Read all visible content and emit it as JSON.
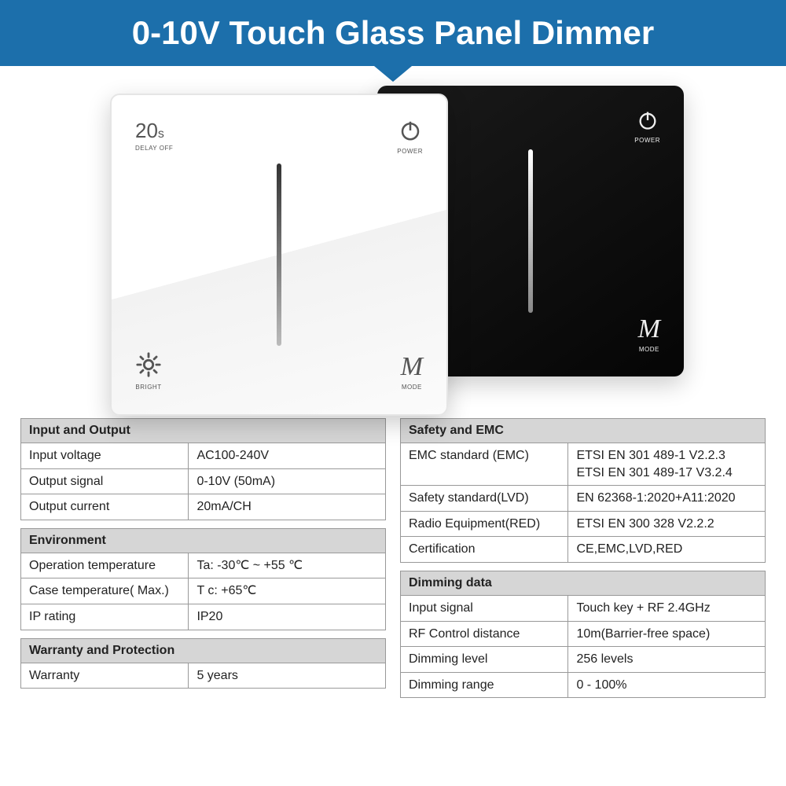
{
  "banner": {
    "title": "0-10V Touch Glass Panel Dimmer",
    "bg": "#1c6fab"
  },
  "panel_labels": {
    "delay_value": "20",
    "delay_unit": "s",
    "delay_off": "DELAY OFF",
    "power": "POWER",
    "bright": "BRIGHT",
    "mode_letter": "M",
    "mode": "MODE"
  },
  "left_tables": [
    {
      "title": "Input and Output",
      "rows": [
        [
          "Input voltage",
          "AC100-240V"
        ],
        [
          "Output signal",
          "0-10V (50mA)"
        ],
        [
          "Output current",
          "20mA/CH"
        ]
      ]
    },
    {
      "title": "Environment",
      "rows": [
        [
          "Operation temperature",
          "Ta: -30℃ ~ +55 ℃"
        ],
        [
          "Case temperature( Max.)",
          "T c: +65℃"
        ],
        [
          "IP rating",
          "IP20"
        ]
      ]
    },
    {
      "title": "Warranty and Protection",
      "rows": [
        [
          "Warranty",
          "5 years"
        ]
      ]
    }
  ],
  "right_tables": [
    {
      "title": "Safety and EMC",
      "rows": [
        [
          "EMC standard (EMC)",
          "ETSI EN 301 489-1 V2.2.3\nETSI EN 301 489-17 V3.2.4"
        ],
        [
          "Safety standard(LVD)",
          "EN 62368-1:2020+A11:2020"
        ],
        [
          "Radio Equipment(RED)",
          "ETSI EN 300 328 V2.2.2"
        ],
        [
          "Certification",
          "CE,EMC,LVD,RED"
        ]
      ]
    },
    {
      "title": "Dimming data",
      "rows": [
        [
          "Input signal",
          "Touch key + RF 2.4GHz"
        ],
        [
          "RF Control distance",
          "10m(Barrier-free space)"
        ],
        [
          "Dimming level",
          "256 levels"
        ],
        [
          "Dimming range",
          "0 - 100%"
        ]
      ]
    }
  ]
}
